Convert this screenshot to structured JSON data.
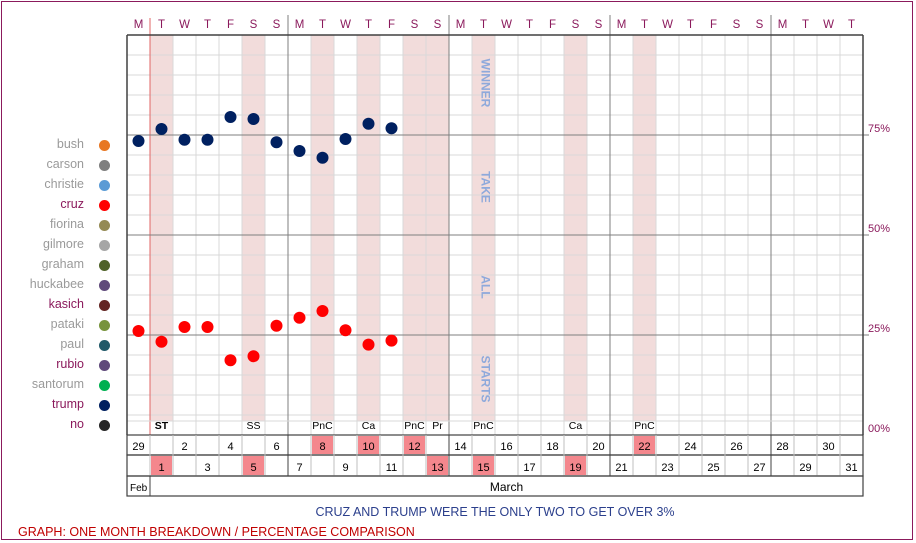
{
  "title": "CRUZ AND TRUMP WERE THE ONLY TWO TO GET OVER 3%",
  "footer_label": "GRAPH: ONE MONTH BREAKDOWN / PERCENTAGE COMPARISON",
  "legend": [
    {
      "name": "bush",
      "color": "#e87722",
      "highlight": false
    },
    {
      "name": "carson",
      "color": "#7f7f7f",
      "highlight": false
    },
    {
      "name": "christie",
      "color": "#5b9bd5",
      "highlight": false
    },
    {
      "name": "cruz",
      "color": "#ff0000",
      "highlight": true
    },
    {
      "name": "fiorina",
      "color": "#948a54",
      "highlight": false
    },
    {
      "name": "gilmore",
      "color": "#a6a6a6",
      "highlight": false
    },
    {
      "name": "graham",
      "color": "#4f6228",
      "highlight": false
    },
    {
      "name": "huckabee",
      "color": "#604a7b",
      "highlight": false
    },
    {
      "name": "kasich",
      "color": "#632523",
      "highlight": true
    },
    {
      "name": "pataki",
      "color": "#77933c",
      "highlight": false
    },
    {
      "name": "paul",
      "color": "#215968",
      "highlight": false
    },
    {
      "name": "rubio",
      "color": "#5f497a",
      "highlight": true
    },
    {
      "name": "santorum",
      "color": "#00b050",
      "highlight": false
    },
    {
      "name": "trump",
      "color": "#002060",
      "highlight": true
    },
    {
      "name": "no",
      "color": "#262626",
      "highlight": true
    }
  ],
  "chart_data": {
    "type": "scatter",
    "ylim": [
      0,
      100
    ],
    "yticks": [
      {
        "value": 75,
        "label": "75%"
      },
      {
        "value": 50,
        "label": "50%"
      },
      {
        "value": 25,
        "label": "25%"
      },
      {
        "value": 0,
        "label": "00%"
      }
    ],
    "weekday_letters": [
      "M",
      "T",
      "W",
      "T",
      "F",
      "S",
      "S",
      "M",
      "T",
      "W",
      "T",
      "F",
      "S",
      "S",
      "M",
      "T",
      "W",
      "T",
      "F",
      "S",
      "S",
      "M",
      "T",
      "W",
      "T",
      "F",
      "S",
      "S",
      "M",
      "T",
      "W",
      "T"
    ],
    "day_numbers": [
      "29",
      "1",
      "2",
      "3",
      "4",
      "5",
      "6",
      "7",
      "8",
      "9",
      "10",
      "11",
      "12",
      "13",
      "14",
      "15",
      "16",
      "17",
      "18",
      "19",
      "20",
      "21",
      "22",
      "23",
      "24",
      "25",
      "26",
      "27",
      "28",
      "29",
      "30",
      "31"
    ],
    "highlighted_days": [
      1,
      5,
      8,
      10,
      12,
      13,
      15,
      19,
      22
    ],
    "month_labels": [
      {
        "text": "Feb",
        "from": 0,
        "to": 0
      },
      {
        "text": "March",
        "from": 1,
        "to": 31
      }
    ],
    "event_labels": [
      {
        "day_index": 1,
        "text": "ST"
      },
      {
        "day_index": 5,
        "text": "SS"
      },
      {
        "day_index": 8,
        "text": "PnC"
      },
      {
        "day_index": 10,
        "text": "Ca"
      },
      {
        "day_index": 12,
        "text": "PnC"
      },
      {
        "day_index": 13,
        "text": "Pr"
      },
      {
        "day_index": 15,
        "text": "PnC"
      },
      {
        "day_index": 19,
        "text": "Ca"
      },
      {
        "day_index": 22,
        "text": "PnC"
      }
    ],
    "vertical_words": [
      {
        "text": "WINNER",
        "value": 88
      },
      {
        "text": "TAKE",
        "value": 62
      },
      {
        "text": "ALL",
        "value": 37
      },
      {
        "text": "STARTS",
        "value": 14
      }
    ],
    "series": [
      {
        "name": "trump",
        "color": "#002060",
        "points": [
          [
            0,
            73.5
          ],
          [
            1,
            76.5
          ],
          [
            2,
            73.8
          ],
          [
            3,
            73.8
          ],
          [
            4,
            79.5
          ],
          [
            5,
            79
          ],
          [
            6,
            73.2
          ],
          [
            7,
            71
          ],
          [
            8,
            69.3
          ],
          [
            9,
            74
          ],
          [
            10,
            77.8
          ],
          [
            11,
            76.7
          ]
        ]
      },
      {
        "name": "cruz",
        "color": "#ff0000",
        "points": [
          [
            0,
            26
          ],
          [
            1,
            23.3
          ],
          [
            2,
            27
          ],
          [
            3,
            27
          ],
          [
            4,
            18.7
          ],
          [
            5,
            19.7
          ],
          [
            6,
            27.3
          ],
          [
            7,
            29.3
          ],
          [
            8,
            31
          ],
          [
            9,
            26.2
          ],
          [
            10,
            22.6
          ],
          [
            11,
            23.6
          ]
        ]
      }
    ]
  }
}
